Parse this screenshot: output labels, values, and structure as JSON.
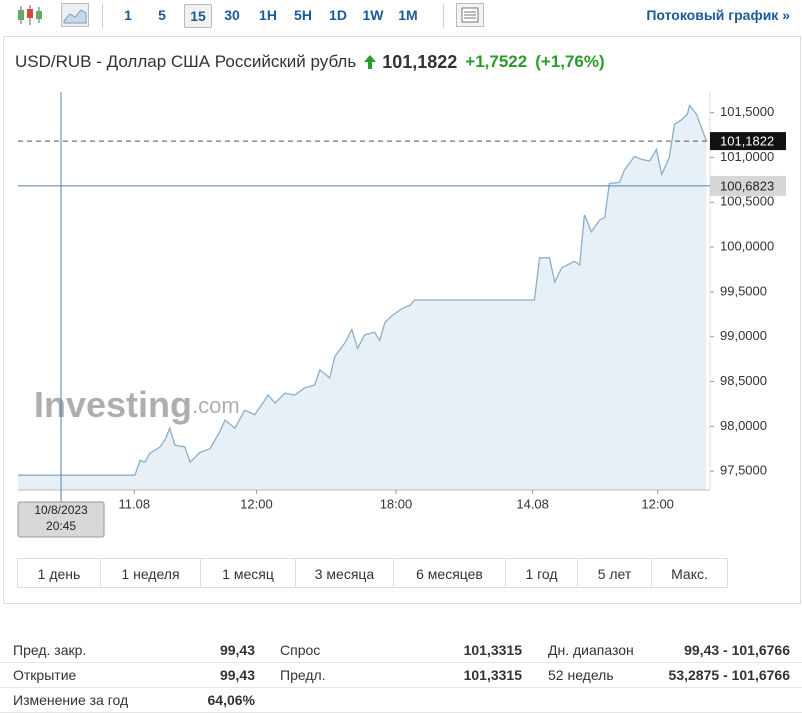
{
  "toolbar": {
    "intervals": [
      "1",
      "5",
      "15",
      "30",
      "1H",
      "5H",
      "1D",
      "1W",
      "1M"
    ],
    "active_interval": "15",
    "streaming_link": "Потоковый график »"
  },
  "header": {
    "title": "USD/RUB - Доллар США Российский рубль",
    "price": "101,1822",
    "change": "+1,7522",
    "change_pct": "(+1,76%)"
  },
  "chart_data": {
    "type": "line",
    "watermark": "Investing",
    "watermark_suffix": ".com",
    "color": "#8aaecb",
    "fill": "#e8f0f7",
    "x": [
      0,
      20.1,
      21.0,
      21.8,
      22.7,
      24.4,
      25.3,
      26.1,
      27.0,
      28.7,
      29.6,
      31.3,
      33.0,
      34.7,
      35.6,
      37.3,
      39.0,
      40.7,
      41.9,
      43.0,
      44.2,
      45.9,
      47.6,
      49.3,
      51.0,
      51.9,
      53.6,
      54.5,
      56.2,
      57.4,
      58.4,
      59.6,
      61.3,
      62.2,
      63.1,
      64.4,
      66.2,
      67.4,
      68.2,
      88.8,
      89.7,
      91.4,
      92.3,
      93.5,
      95.7,
      96.6,
      97.4,
      98.6,
      100.0,
      100.9,
      101.7,
      103.4,
      104.3,
      106.0,
      107.2,
      108.6,
      109.8,
      110.7,
      112.0,
      112.9,
      114.1,
      115.1,
      115.5,
      116.7,
      118.4
    ],
    "values": [
      97.455,
      97.455,
      97.62,
      97.6,
      97.7,
      97.77,
      97.85,
      97.98,
      97.79,
      97.77,
      97.6,
      97.71,
      97.75,
      97.94,
      98.07,
      97.98,
      98.18,
      98.13,
      98.24,
      98.35,
      98.26,
      98.37,
      98.35,
      98.43,
      98.46,
      98.63,
      98.54,
      98.78,
      98.93,
      99.08,
      98.87,
      99.02,
      99.05,
      98.96,
      99.16,
      99.24,
      99.32,
      99.35,
      99.41,
      99.41,
      99.88,
      99.88,
      99.61,
      99.77,
      99.84,
      99.8,
      100.36,
      100.17,
      100.3,
      100.33,
      100.71,
      100.72,
      100.86,
      101.01,
      100.98,
      100.96,
      101.09,
      100.81,
      101.0,
      101.37,
      101.42,
      101.48,
      101.58,
      101.48,
      101.18
    ],
    "xlim": [
      0,
      119
    ],
    "ylim": [
      97.29,
      101.73
    ],
    "xticks": [
      {
        "value": 20,
        "label": "11.08"
      },
      {
        "value": 41,
        "label": "12:00"
      },
      {
        "value": 65,
        "label": "18:00"
      },
      {
        "value": 88.5,
        "label": "14.08"
      },
      {
        "value": 110,
        "label": "12:00"
      }
    ],
    "yticks": [
      {
        "value": 97.5,
        "label": "97,5000"
      },
      {
        "value": 98,
        "label": "98,0000"
      },
      {
        "value": 98.5,
        "label": "98,5000"
      },
      {
        "value": 99,
        "label": "99,0000"
      },
      {
        "value": 99.5,
        "label": "99,5000"
      },
      {
        "value": 100,
        "label": "100,0000"
      },
      {
        "value": 100.5,
        "label": "100,5000"
      },
      {
        "value": 101,
        "label": "101,0000"
      },
      {
        "value": 101.5,
        "label": "101,5000"
      }
    ],
    "last_price": {
      "value": 101.1822,
      "label": "101,1822"
    },
    "crosshair": {
      "x": 7.4,
      "x_label": [
        "10/8/2023",
        "20:45"
      ],
      "y": {
        "value": 100.6823,
        "label": "100,6823"
      }
    }
  },
  "periods": [
    "1 день",
    "1 неделя",
    "1 месяц",
    "3 месяца",
    "6 месяцев",
    "1 год",
    "5 лет",
    "Макс."
  ],
  "stats": [
    [
      "Пред. закр.",
      "99,43",
      "Спрос",
      "101,3315",
      "Дн. диапазон",
      "99,43 - 101,6766"
    ],
    [
      "Открытие",
      "99,43",
      "Предл.",
      "101,3315",
      "52 недель",
      "53,2875 - 101,6766"
    ],
    [
      "Изменение за год",
      "64,06%"
    ]
  ]
}
